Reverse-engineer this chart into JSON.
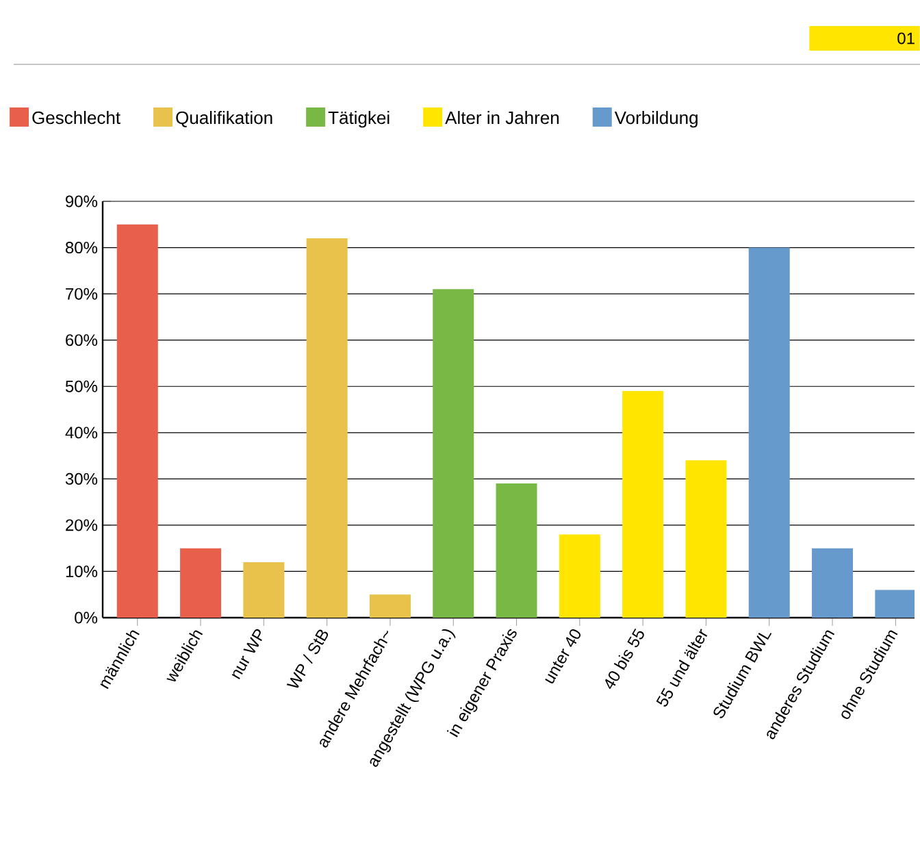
{
  "chart_data": {
    "type": "bar",
    "categories": [
      "männlich",
      "weiblich",
      "nur WP",
      "WP / StB",
      "andere Mehrfach~",
      "angestellt (WPG u.a.)",
      "in eigener Praxis",
      "unter 40",
      "40 bis 55",
      "55 und älter",
      "Studium BWL",
      "anderes Studium",
      "ohne Studium"
    ],
    "series": [
      {
        "name": "Geschlecht",
        "color": "#e8604c",
        "values": [
          85,
          15,
          null,
          null,
          null,
          null,
          null,
          null,
          null,
          null,
          null,
          null,
          null
        ]
      },
      {
        "name": "Qualifikation",
        "color": "#e8c24a",
        "values": [
          null,
          null,
          12,
          82,
          5,
          null,
          null,
          null,
          null,
          null,
          null,
          null,
          null
        ]
      },
      {
        "name": "Tätigkei",
        "color": "#77b944",
        "values": [
          null,
          null,
          null,
          null,
          null,
          71,
          29,
          null,
          null,
          null,
          null,
          null,
          null
        ]
      },
      {
        "name": "Alter in Jahren",
        "color": "#ffe500",
        "values": [
          null,
          null,
          null,
          null,
          null,
          null,
          null,
          18,
          49,
          34,
          null,
          null,
          null
        ]
      },
      {
        "name": "Vorbildung",
        "color": "#6699cc",
        "values": [
          null,
          null,
          null,
          null,
          null,
          null,
          null,
          null,
          null,
          null,
          80,
          15,
          6
        ]
      }
    ],
    "ylim": [
      0,
      90
    ],
    "yticks": [
      {
        "value": 0,
        "label": "0%"
      },
      {
        "value": 10,
        "label": "10%"
      },
      {
        "value": 20,
        "label": "20%"
      },
      {
        "value": 30,
        "label": "30%"
      },
      {
        "value": 40,
        "label": "40%"
      },
      {
        "value": 50,
        "label": "50%"
      },
      {
        "value": 60,
        "label": "60%"
      },
      {
        "value": 70,
        "label": "70%"
      },
      {
        "value": 80,
        "label": "80%"
      },
      {
        "value": 90,
        "label": "90%"
      }
    ],
    "grid": "y",
    "legend": "top left",
    "annotations": [
      "01"
    ]
  }
}
